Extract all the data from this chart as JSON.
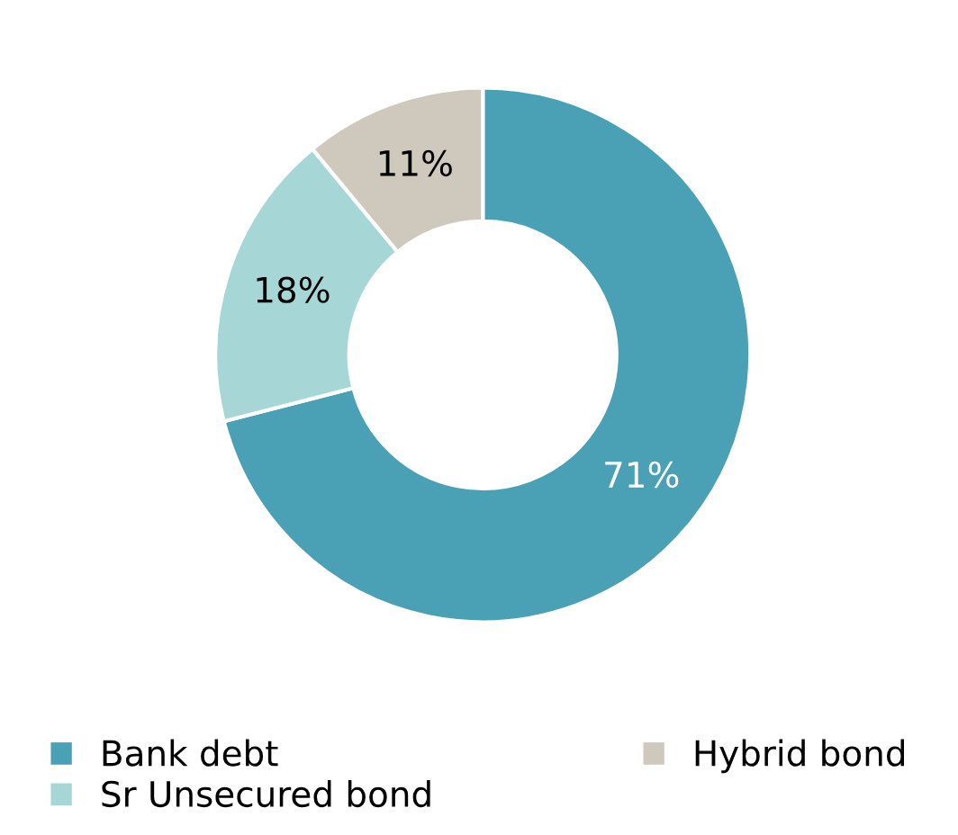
{
  "chart_data": {
    "type": "donut",
    "categories": [
      "Bank debt",
      "Sr Unsecured bond",
      "Hybrid bond"
    ],
    "values": [
      71,
      18,
      11
    ],
    "colors": [
      "#4aa0b5",
      "#a6d6d6",
      "#cfc9bd"
    ],
    "value_labels": [
      "71%",
      "18%",
      "11%"
    ],
    "legend": "bottom"
  }
}
